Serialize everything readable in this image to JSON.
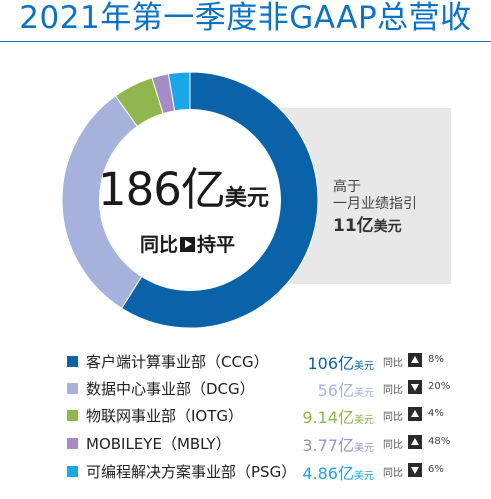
{
  "title": "2021年第一季度非GAAP总营收",
  "total": {
    "value": "186亿",
    "unit": "美元",
    "yoy_label": "同比",
    "yoy_value": "持平",
    "yoy_icon": "play-icon"
  },
  "note": {
    "line1": "高于",
    "line2": "一月业绩指引",
    "value": "11亿",
    "unit": "美元"
  },
  "legend": [
    {
      "name": "客户端计算事业部（CCG）",
      "value": "106亿",
      "unit": "美元",
      "yoy_label": "同比",
      "direction": "up",
      "pct": "8%",
      "color": "#0a62a8"
    },
    {
      "name": "数据中心事业部（DCG）",
      "value": "56亿",
      "unit": "美元",
      "yoy_label": "同比",
      "direction": "down",
      "pct": "20%",
      "color": "#a6b2dc"
    },
    {
      "name": "物联网事业部（IOTG）",
      "value": "9.14亿",
      "unit": "美元",
      "yoy_label": "同比",
      "direction": "up",
      "pct": "4%",
      "color": "#8fb74d"
    },
    {
      "name": "MOBILEYE（MBLY）",
      "value": "3.77亿",
      "unit": "美元",
      "yoy_label": "同比",
      "direction": "up",
      "pct": "48%",
      "color": "#a58cc5"
    },
    {
      "name": "可编程解决方案事业部（PSG）",
      "value": "4.86亿",
      "unit": "美元",
      "yoy_label": "同比",
      "direction": "down",
      "pct": "6%",
      "color": "#1aa7e8"
    }
  ],
  "chart_data": {
    "type": "pie",
    "donut": true,
    "categories": [
      "客户端计算事业部（CCG）",
      "数据中心事业部（DCG）",
      "物联网事业部（IOTG）",
      "MOBILEYE（MBLY）",
      "可编程解决方案事业部（PSG）"
    ],
    "values": [
      106,
      56,
      9.14,
      3.77,
      4.86
    ],
    "unit": "亿美元",
    "colors": [
      "#0a62a8",
      "#a6b2dc",
      "#8fb74d",
      "#a58cc5",
      "#1aa7e8"
    ]
  }
}
